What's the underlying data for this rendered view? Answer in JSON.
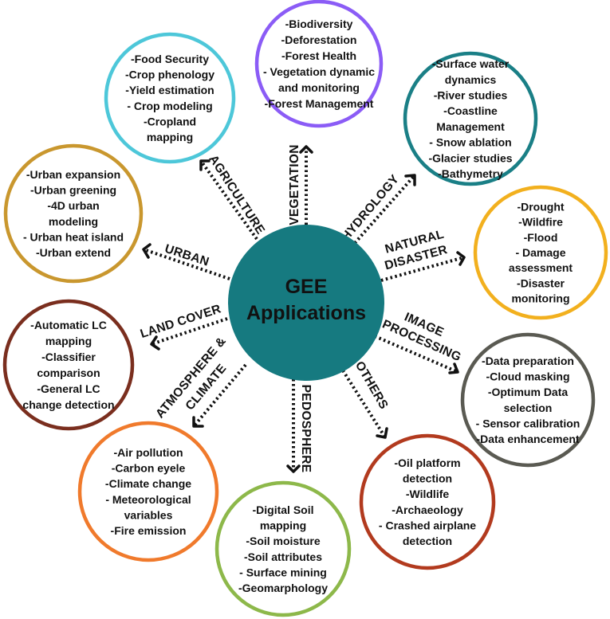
{
  "center": {
    "line1": "GEE",
    "line2": "Applications",
    "color": "#167A80"
  },
  "nodes": [
    {
      "category": "AGRICULTURE",
      "color": "#4DC7D9",
      "items": [
        "-Food Security",
        "-Crop phenology",
        "-Yield estimation",
        "- Crop modeling",
        "-Cropland",
        "mapping"
      ]
    },
    {
      "category": "VEGETATION",
      "color": "#8B5CF6",
      "items": [
        "-Biodiversity",
        "-Deforestation",
        "-Forest Health",
        "- Vegetation dynamic",
        "and monitoring",
        "-Forest Management"
      ]
    },
    {
      "category": "HYDROLOGY",
      "color": "#1A7F86",
      "items": [
        "-Surface water",
        "dynamics",
        "-River studies",
        "-Coastline",
        "Management",
        "- Snow ablation",
        "-Glacier studies",
        "-Bathymetry"
      ]
    },
    {
      "category": "URBAN",
      "color": "#C9972E",
      "items": [
        "-Urban expansion",
        "-Urban greening",
        "-4D urban",
        "modeling",
        "- Urban heat island",
        "-Urban extend"
      ]
    },
    {
      "category_lines": [
        "NATURAL",
        "DISASTER"
      ],
      "color": "#F2B01E",
      "items": [
        "-Drought",
        "-Wildfire",
        "-Flood",
        "- Damage",
        "assessment",
        "-Disaster",
        "monitoring"
      ]
    },
    {
      "category": "LAND COVER",
      "color": "#7A2E1E",
      "items": [
        "-Automatic LC",
        "mapping",
        "-Classifier",
        "comparison",
        "-General LC",
        "change detection"
      ]
    },
    {
      "category_lines": [
        "IMAGE",
        "PROCESSING"
      ],
      "color": "#5A5A52",
      "items": [
        "-Data preparation",
        "-Cloud masking",
        "-Optimum Data",
        "selection",
        "- Sensor calibration",
        "-Data enhancement"
      ]
    },
    {
      "category_lines": [
        "ATMOSPHERE &",
        "CLIMATE"
      ],
      "color": "#F07A2C",
      "items": [
        "-Air pollution",
        "-Carbon eyele",
        "-Climate change",
        "- Meteorological",
        "variables",
        "-Fire emission"
      ]
    },
    {
      "category": "PEDOSPHERE",
      "color": "#8DB84A",
      "items": [
        "-Digital Soil",
        "mapping",
        "-Soil moisture",
        "-Soil attributes",
        "- Surface mining",
        "-Geomarphology"
      ]
    },
    {
      "category": "OTHERS",
      "color": "#B23A1E",
      "items": [
        "-Oil platform",
        "detection",
        "-Wildlife",
        "-Archaeology",
        "- Crashed airplane",
        "detection"
      ]
    }
  ]
}
